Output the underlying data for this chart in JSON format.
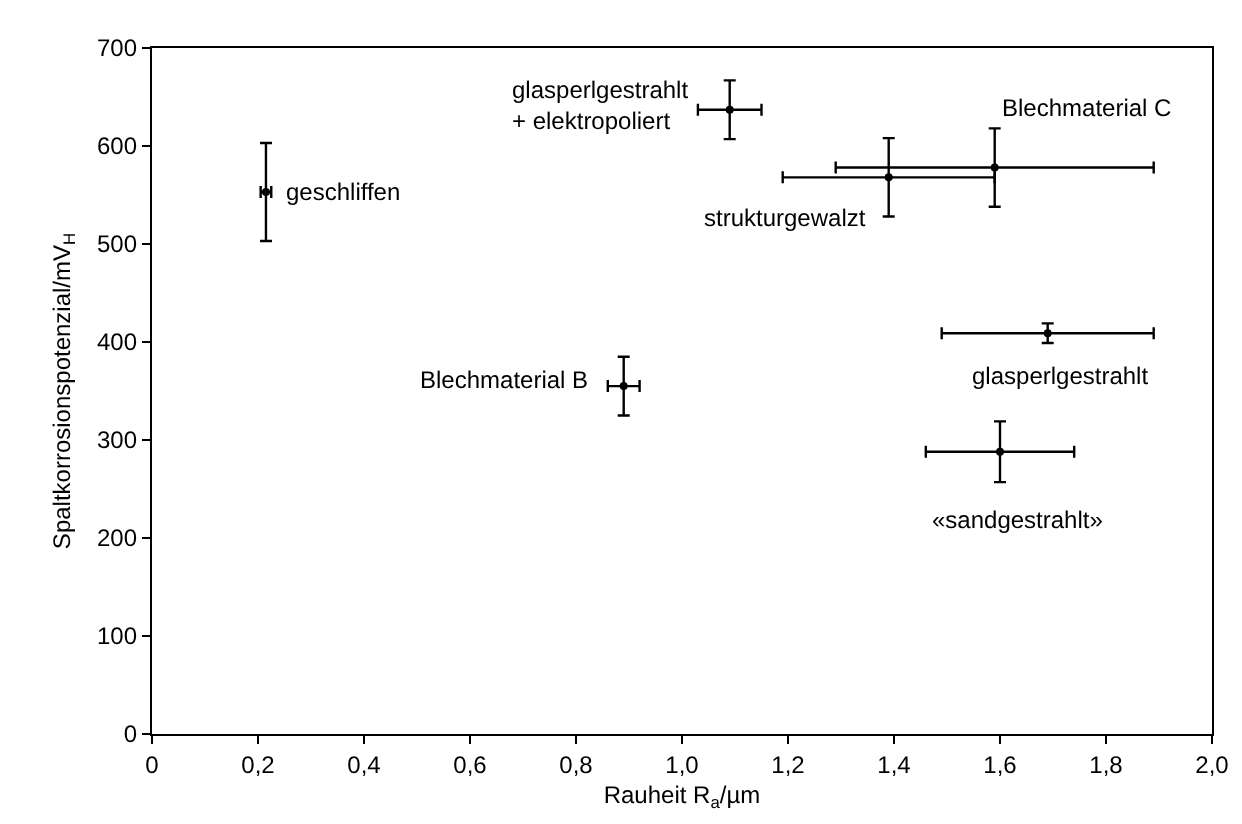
{
  "chart_data": {
    "type": "scatter",
    "xlabel": "Rauheit R$_{a}$/µm",
    "ylabel": "Spaltkorrosionspotenzial/mV$_{H}$",
    "x": [
      0.215,
      1.09,
      1.39,
      1.59,
      1.69,
      0.89,
      1.6
    ],
    "series": [
      {
        "color": "#000000",
        "values": [
          553,
          637,
          568,
          578,
          409,
          355,
          288
        ],
        "errors": [
          50,
          30,
          40,
          40,
          10,
          30,
          31
        ],
        "xerrors": [
          0.01,
          0.06,
          0.2,
          0.3,
          0.2,
          0.03,
          0.14
        ]
      }
    ],
    "marker": "circle",
    "grid": false,
    "xlim": [
      0,
      2.0
    ],
    "xticks": [
      0,
      {
        "value": 0.2,
        "label": "0,2"
      },
      {
        "value": 0.4,
        "label": "0,4"
      },
      {
        "value": 0.6,
        "label": "0,6"
      },
      {
        "value": 0.8,
        "label": "0,8"
      },
      {
        "value": 1.0,
        "label": "1,0"
      },
      {
        "value": 1.2,
        "label": "1,2"
      },
      {
        "value": 1.4,
        "label": "1,4"
      },
      {
        "value": 1.6,
        "label": "1,6"
      },
      {
        "value": 1.8,
        "label": "1,8"
      },
      {
        "value": 2.0,
        "label": "2,0"
      }
    ],
    "ylim": [
      0,
      700
    ],
    "yticks": [
      0,
      100,
      200,
      300,
      400,
      500,
      600,
      700
    ],
    "annotations": [
      {
        "text": "geschliffen",
        "x": 0.215,
        "y": 553
      },
      {
        "text": "glasperlgestrahlt\n+ elektropoliert",
        "x": 1.09,
        "y": 637
      },
      {
        "text": "strukturgewalzt",
        "x": 1.39,
        "y": 568
      },
      {
        "text": "Blechmaterial C",
        "x": 1.59,
        "y": 578
      },
      {
        "text": "glasperlgestrahlt",
        "x": 1.69,
        "y": 409
      },
      {
        "text": "Blechmaterial B",
        "x": 0.89,
        "y": 355
      },
      {
        "text": "«sandgestrahlt»",
        "x": 1.6,
        "y": 288
      }
    ]
  }
}
